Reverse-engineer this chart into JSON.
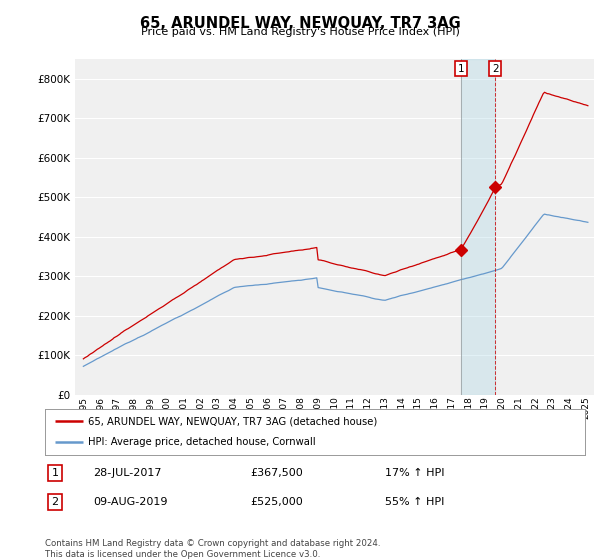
{
  "title": "65, ARUNDEL WAY, NEWQUAY, TR7 3AG",
  "subtitle": "Price paid vs. HM Land Registry's House Price Index (HPI)",
  "legend_label_red": "65, ARUNDEL WAY, NEWQUAY, TR7 3AG (detached house)",
  "legend_label_blue": "HPI: Average price, detached house, Cornwall",
  "transaction1_date": "28-JUL-2017",
  "transaction1_price": "£367,500",
  "transaction1_hpi": "17% ↑ HPI",
  "transaction2_date": "09-AUG-2019",
  "transaction2_price": "£525,000",
  "transaction2_hpi": "55% ↑ HPI",
  "footer": "Contains HM Land Registry data © Crown copyright and database right 2024.\nThis data is licensed under the Open Government Licence v3.0.",
  "ylim": [
    0,
    850000
  ],
  "yticks": [
    0,
    100000,
    200000,
    300000,
    400000,
    500000,
    600000,
    700000,
    800000
  ],
  "red_color": "#cc0000",
  "blue_color": "#6699cc",
  "bg_color": "#ffffff",
  "plot_bg_color": "#f0f0f0",
  "grid_color": "#ffffff",
  "t1_year": 2017.57,
  "t2_year": 2019.61,
  "prop_at_t1": 367500,
  "prop_at_t2": 525000
}
